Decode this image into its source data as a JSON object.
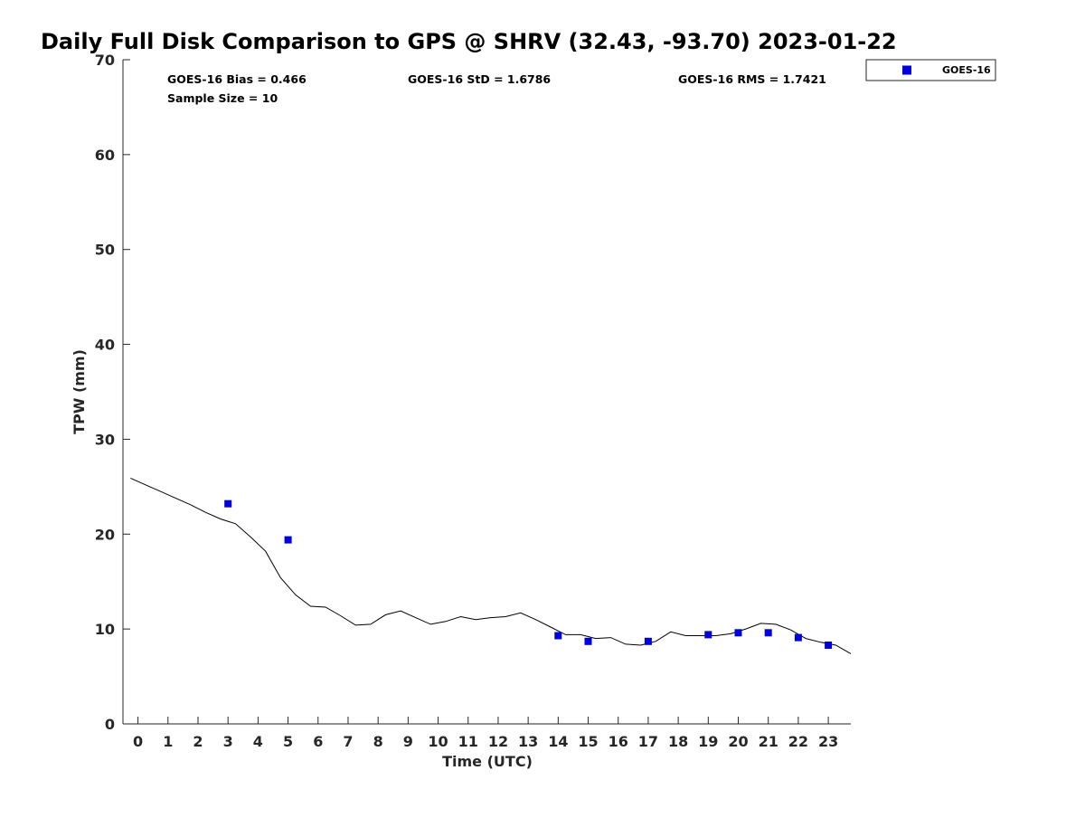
{
  "colors": {
    "gps_line": "#000000",
    "goes_marker": "#0000dd",
    "axis": "#262626"
  },
  "chart_data": {
    "type": "line",
    "title": "Daily Full Disk Comparison to GPS @ SHRV (32.43, -93.70) 2023-01-22",
    "xlabel": "Time (UTC)",
    "ylabel": "TPW (mm)",
    "xlim": [
      -0.5,
      23.75
    ],
    "ylim": [
      0,
      70
    ],
    "x_ticks": [
      0,
      1,
      2,
      3,
      4,
      5,
      6,
      7,
      8,
      9,
      10,
      11,
      12,
      13,
      14,
      15,
      16,
      17,
      18,
      19,
      20,
      21,
      22,
      23
    ],
    "y_ticks": [
      0,
      10,
      20,
      30,
      40,
      50,
      60,
      70
    ],
    "grid": false,
    "legend_position": "top-right-outside",
    "stats": {
      "bias": "GOES-16 Bias = 0.466",
      "std": "GOES-16 StD = 1.6786",
      "rms": "GOES-16 RMS = 1.7421",
      "sample": "Sample Size = 10"
    },
    "series": [
      {
        "kind": "line",
        "x": [
          -0.25,
          0.25,
          0.75,
          1.25,
          1.75,
          2.25,
          2.75,
          3.25,
          3.75,
          4.25,
          4.75,
          5.25,
          5.75,
          6.25,
          6.75,
          7.25,
          7.75,
          8.25,
          8.75,
          9.25,
          9.75,
          10.25,
          10.75,
          11.25,
          11.75,
          12.25,
          12.75,
          13.25,
          13.75,
          14.25,
          14.75,
          15.25,
          15.75,
          16.25,
          16.75,
          17.25,
          17.75,
          18.25,
          18.75,
          19.25,
          19.75,
          20.25,
          20.75,
          21.25,
          21.75,
          22.25,
          22.75,
          23.25,
          23.75
        ],
        "y": [
          25.9,
          25.2,
          24.5,
          23.8,
          23.1,
          22.3,
          21.6,
          21.1,
          19.7,
          18.2,
          15.4,
          13.6,
          12.4,
          12.3,
          11.4,
          10.4,
          10.5,
          11.5,
          11.9,
          11.2,
          10.5,
          10.8,
          11.3,
          11.0,
          11.2,
          11.3,
          11.7,
          11.0,
          10.2,
          9.4,
          9.4,
          9.0,
          9.1,
          8.4,
          8.3,
          8.7,
          9.7,
          9.3,
          9.3,
          9.3,
          9.5,
          10.0,
          10.6,
          10.5,
          9.9,
          9.0,
          8.6,
          8.3,
          7.4
        ]
      },
      {
        "kind": "scatter",
        "name": "GOES-16",
        "x": [
          3,
          5,
          14,
          15,
          17,
          19,
          20,
          21,
          22,
          23
        ],
        "y": [
          23.2,
          19.4,
          9.3,
          8.7,
          8.7,
          9.4,
          9.6,
          9.6,
          9.1,
          8.3
        ]
      }
    ]
  }
}
